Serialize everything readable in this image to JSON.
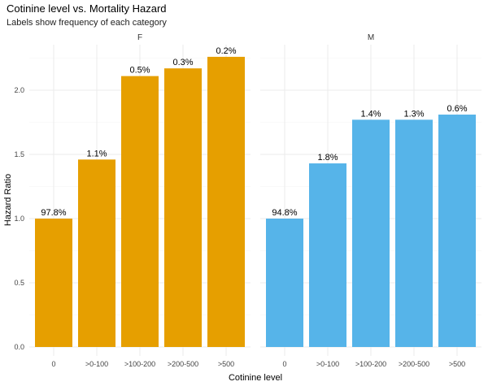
{
  "title": "Cotinine level vs. Mortality Hazard",
  "subtitle": "Labels show frequency of each category",
  "chart_data": {
    "type": "bar",
    "title": "Cotinine level vs. Mortality Hazard",
    "subtitle": "Labels show frequency of each category",
    "xlabel": "Cotinine level",
    "ylabel": "Hazard Ratio",
    "ylim": [
      0,
      2.3
    ],
    "yticks": [
      "0.0",
      "0.5",
      "1.0",
      "1.5",
      "2.0"
    ],
    "yticks_values": [
      0,
      0.5,
      1.0,
      1.5,
      2.0
    ],
    "categories": [
      "0",
      ">0-100",
      ">100-200",
      ">200-500",
      ">500"
    ],
    "grid": true,
    "facets": [
      {
        "name": "F",
        "color": "#E69F00",
        "values": [
          1.0,
          1.46,
          2.11,
          2.17,
          2.26
        ],
        "labels": [
          "97.8%",
          "1.1%",
          "0.5%",
          "0.3%",
          "0.2%"
        ]
      },
      {
        "name": "M",
        "color": "#56B4E9",
        "values": [
          1.0,
          1.43,
          1.77,
          1.77,
          1.81
        ],
        "labels": [
          "94.8%",
          "1.8%",
          "1.4%",
          "1.3%",
          "0.6%"
        ]
      }
    ]
  }
}
